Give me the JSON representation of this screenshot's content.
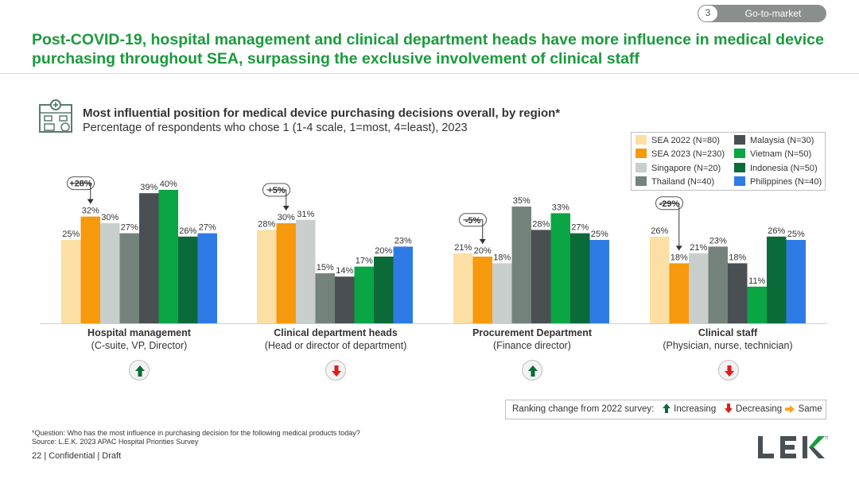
{
  "section": {
    "number": "3",
    "label": "Go-to-market"
  },
  "headline": "Post-COVID-19, hospital management and clinical department heads have more influence in medical device purchasing throughout SEA, surpassing the exclusive involvement of clinical staff",
  "chart_data": {
    "type": "bar",
    "title": "Most influential position for medical device purchasing decisions overall, by region*",
    "subtitle": "Percentage of respondents who chose 1 (1-4 scale, 1=most, 4=least), 2023",
    "unit": "%",
    "ylim": [
      0,
      45
    ],
    "categories": [
      {
        "title": "Hospital management",
        "subtitle": "(C-suite, VP, Director)",
        "change": "+28%",
        "ranking": "increasing"
      },
      {
        "title": "Clinical department heads",
        "subtitle": "(Head or director of department)",
        "change": "+5%",
        "ranking": "decreasing"
      },
      {
        "title": "Procurement Department",
        "subtitle": "(Finance director)",
        "change": "-5%",
        "ranking": "increasing"
      },
      {
        "title": "Clinical staff",
        "subtitle": "(Physician, nurse, technician)",
        "change": "-29%",
        "ranking": "decreasing"
      }
    ],
    "series": [
      {
        "name": "SEA 2022 (N=80)",
        "color": "#fbdfa4",
        "values": [
          25,
          28,
          21,
          26
        ]
      },
      {
        "name": "SEA 2023 (N=230)",
        "color": "#f7990c",
        "values": [
          32,
          30,
          20,
          18
        ]
      },
      {
        "name": "Singapore (N=20)",
        "color": "#c8cecc",
        "values": [
          30,
          31,
          18,
          21
        ]
      },
      {
        "name": "Thailand (N=40)",
        "color": "#73837c",
        "values": [
          27,
          15,
          35,
          23
        ]
      },
      {
        "name": "Malaysia (N=30)",
        "color": "#4a4f54",
        "values": [
          39,
          14,
          28,
          18
        ]
      },
      {
        "name": "Vietnam (N=50)",
        "color": "#0aa544",
        "values": [
          40,
          17,
          33,
          11
        ]
      },
      {
        "name": "Indonesia (N=50)",
        "color": "#0b6b38",
        "values": [
          26,
          20,
          27,
          26
        ]
      },
      {
        "name": "Philippines (N=40)",
        "color": "#2f7be5",
        "values": [
          27,
          23,
          25,
          25
        ]
      }
    ]
  },
  "change_legend": {
    "title": "Ranking change from 2022 survey:",
    "increasing": "Increasing",
    "decreasing": "Decreasing",
    "same": "Same"
  },
  "colors": {
    "up": "#0b6b38",
    "down": "#e21b1b",
    "same": "#f7a41d",
    "brand": "#1a9b3c"
  },
  "footnotes": {
    "question": "*Question: Who has the most influence in purchasing decision for the following medical products today?",
    "source": "Source: L.E.K. 2023 APAC Hospital Priorities Survey"
  },
  "footer": {
    "page": "22",
    "text": "| Confidential | Draft"
  },
  "logo": {
    "text": "LEK"
  }
}
